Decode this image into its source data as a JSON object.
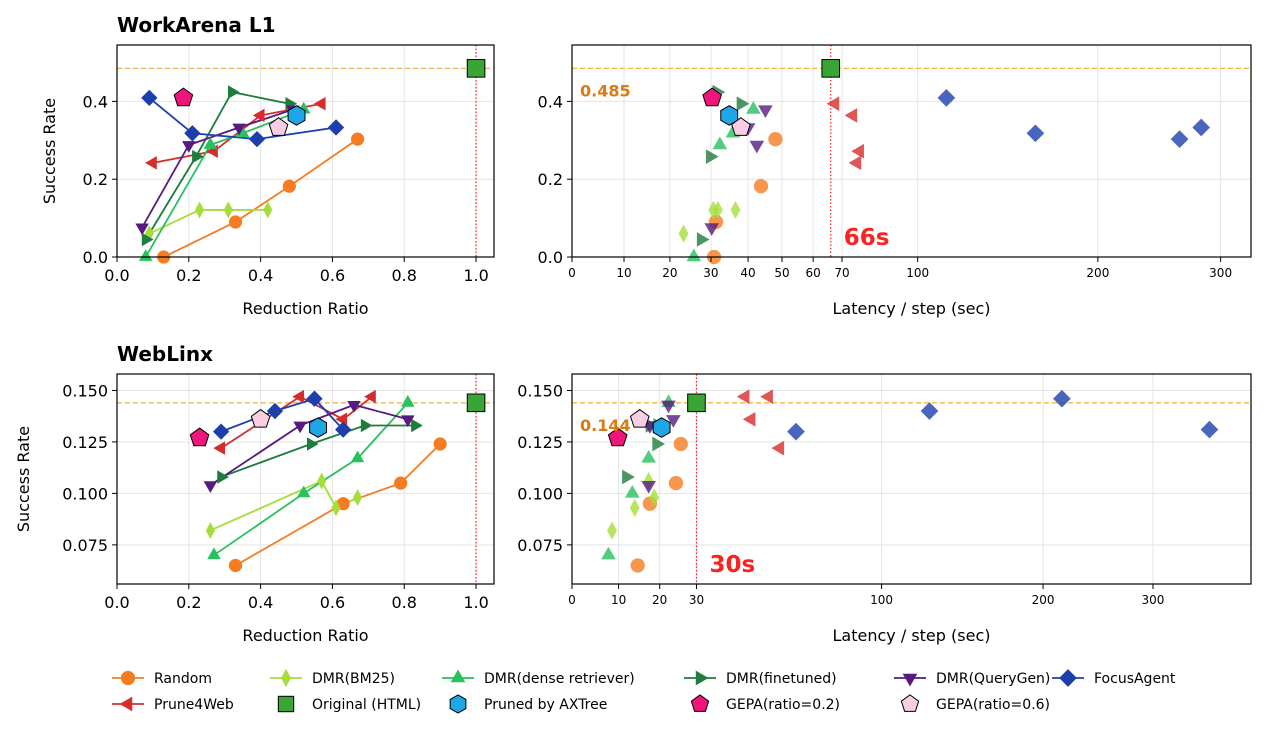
{
  "colors": {
    "Random": "#f57c20",
    "Prune4Web": "#d62c2c",
    "DMR(BM25)": "#a6dd3a",
    "Original (HTML)": "#3aa535",
    "DMR(dense retriever)": "#27c15e",
    "Pruned by AXTree": "#1fa6e6",
    "DMR(finetuned)": "#1e7c3c",
    "GEPA(ratio=0.2)": "#f0157a",
    "DMR(QueryGen)": "#561a80",
    "GEPA(ratio=0.6)": "#f9cde4",
    "FocusAgent": "#1c3fac",
    "ref_line": "#f5b54a",
    "latency_line": "#ff2020",
    "ref_text": "#d97a15"
  },
  "legend": [
    {
      "name": "Random",
      "marker": "circle",
      "line": true
    },
    {
      "name": "Prune4Web",
      "marker": "tri-left",
      "line": true
    },
    {
      "name": "DMR(BM25)",
      "marker": "thin-diamond",
      "line": true
    },
    {
      "name": "Original (HTML)",
      "marker": "square",
      "line": false
    },
    {
      "name": "DMR(dense retriever)",
      "marker": "tri-up",
      "line": true
    },
    {
      "name": "Pruned by AXTree",
      "marker": "hexagon",
      "line": false
    },
    {
      "name": "DMR(finetuned)",
      "marker": "tri-right",
      "line": true
    },
    {
      "name": "GEPA(ratio=0.2)",
      "marker": "pentagon",
      "line": false
    },
    {
      "name": "DMR(QueryGen)",
      "marker": "tri-down",
      "line": true
    },
    {
      "name": "GEPA(ratio=0.6)",
      "marker": "pentagon",
      "line": false
    },
    {
      "name": "FocusAgent",
      "marker": "diamond",
      "line": true
    }
  ],
  "chart_data": [
    {
      "type": "line",
      "title": "WorkArena L1",
      "xlabel": "Reduction Ratio",
      "ylabel": "Success Rate",
      "xlim": [
        0.0,
        1.05
      ],
      "ylim": [
        0.0,
        0.545
      ],
      "xticks": [
        0.0,
        0.2,
        0.4,
        0.6,
        0.8,
        1.0
      ],
      "xtick_labels": [
        "0.0",
        "0.2",
        "0.4",
        "0.6",
        "0.8",
        "1.0"
      ],
      "yticks": [
        0.0,
        0.2,
        0.4
      ],
      "ytick_labels": [
        "0.0",
        "0.2",
        "0.4"
      ],
      "ref_y": 0.485,
      "vline_x": 1.0,
      "series": [
        {
          "name": "Random",
          "x": [
            0.13,
            0.33,
            0.48,
            0.67
          ],
          "y": [
            0.0,
            0.09,
            0.182,
            0.303
          ]
        },
        {
          "name": "Prune4Web",
          "x": [
            0.1,
            0.27,
            0.4,
            0.57
          ],
          "y": [
            0.242,
            0.272,
            0.364,
            0.394
          ]
        },
        {
          "name": "DMR(BM25)",
          "x": [
            0.09,
            0.23,
            0.31,
            0.42
          ],
          "y": [
            0.06,
            0.121,
            0.121,
            0.121
          ]
        },
        {
          "name": "DMR(dense retriever)",
          "x": [
            0.08,
            0.26,
            0.35,
            0.52
          ],
          "y": [
            0.0,
            0.288,
            0.318,
            0.379
          ]
        },
        {
          "name": "DMR(finetuned)",
          "x": [
            0.08,
            0.22,
            0.32,
            0.48
          ],
          "y": [
            0.045,
            0.258,
            0.424,
            0.394
          ]
        },
        {
          "name": "DMR(QueryGen)",
          "x": [
            0.07,
            0.2,
            0.34,
            0.49
          ],
          "y": [
            0.076,
            0.288,
            0.333,
            0.379
          ]
        },
        {
          "name": "FocusAgent",
          "x": [
            0.09,
            0.21,
            0.39,
            0.61
          ],
          "y": [
            0.409,
            0.318,
            0.303,
            0.333
          ]
        },
        {
          "name": "Original (HTML)",
          "x": [
            1.0
          ],
          "y": [
            0.485
          ]
        },
        {
          "name": "Pruned by AXTree",
          "x": [
            0.5
          ],
          "y": [
            0.364
          ]
        },
        {
          "name": "GEPA(ratio=0.2)",
          "x": [
            0.185
          ],
          "y": [
            0.409
          ]
        },
        {
          "name": "GEPA(ratio=0.6)",
          "x": [
            0.45
          ],
          "y": [
            0.333
          ]
        }
      ]
    },
    {
      "type": "scatter",
      "xlabel": "Latency / step (sec)",
      "ylim": [
        0.0,
        0.545
      ],
      "yticks": [
        0.0,
        0.2,
        0.4
      ],
      "ytick_labels": [
        "0.0",
        "0.2",
        "0.4"
      ],
      "xticks": [
        0,
        10,
        20,
        30,
        40,
        50,
        60,
        70,
        100,
        200,
        300
      ],
      "xtick_labels": [
        "0",
        "10",
        "20",
        "30",
        "40",
        "50",
        "60",
        "70",
        "100",
        "200",
        "300"
      ],
      "ref_y": 0.485,
      "ref_label": "0.485",
      "vline_x": 66,
      "vline_label": "66s",
      "series": [
        {
          "name": "Random",
          "x": [
            30.8,
            31.3,
            43.7,
            48.0
          ],
          "y": [
            0.0,
            0.09,
            0.182,
            0.303
          ]
        },
        {
          "name": "Prune4Web",
          "x": [
            67.5,
            74.0,
            76.5,
            75.5
          ],
          "y": [
            0.394,
            0.364,
            0.272,
            0.242
          ]
        },
        {
          "name": "DMR(BM25)",
          "x": [
            23.2,
            30.6,
            31.8,
            36.5
          ],
          "y": [
            0.06,
            0.121,
            0.121,
            0.121
          ]
        },
        {
          "name": "DMR(dense retriever)",
          "x": [
            25.7,
            32.3,
            35.8,
            41.5
          ],
          "y": [
            0.0,
            0.288,
            0.318,
            0.379
          ]
        },
        {
          "name": "DMR(finetuned)",
          "x": [
            27.5,
            29.8,
            31.5,
            38.0
          ],
          "y": [
            0.045,
            0.258,
            0.424,
            0.394
          ]
        },
        {
          "name": "DMR(QueryGen)",
          "x": [
            30.2,
            40.0,
            42.5,
            45.0
          ],
          "y": [
            0.076,
            0.333,
            0.288,
            0.379
          ]
        },
        {
          "name": "FocusAgent",
          "x": [
            113.0,
            160.0,
            263.0,
            282.0
          ],
          "y": [
            0.409,
            0.318,
            0.303,
            0.333
          ]
        },
        {
          "name": "Original (HTML)",
          "x": [
            66.0
          ],
          "y": [
            0.485
          ]
        },
        {
          "name": "Pruned by AXTree",
          "x": [
            34.8
          ],
          "y": [
            0.364
          ]
        },
        {
          "name": "GEPA(ratio=0.2)",
          "x": [
            30.3
          ],
          "y": [
            0.409
          ]
        },
        {
          "name": "GEPA(ratio=0.6)",
          "x": [
            38.0
          ],
          "y": [
            0.333
          ]
        }
      ]
    },
    {
      "type": "line",
      "title": "WebLinx",
      "xlabel": "Reduction Ratio",
      "ylabel": "Success Rate",
      "xlim": [
        0.0,
        1.05
      ],
      "ylim": [
        0.056,
        0.158
      ],
      "xticks": [
        0.0,
        0.2,
        0.4,
        0.6,
        0.8,
        1.0
      ],
      "xtick_labels": [
        "0.0",
        "0.2",
        "0.4",
        "0.6",
        "0.8",
        "1.0"
      ],
      "yticks": [
        0.075,
        0.1,
        0.125,
        0.15
      ],
      "ytick_labels": [
        "0.075",
        "0.100",
        "0.125",
        "0.150"
      ],
      "ref_y": 0.144,
      "vline_x": 1.0,
      "series": [
        {
          "name": "Random",
          "x": [
            0.33,
            0.63,
            0.79,
            0.9
          ],
          "y": [
            0.065,
            0.095,
            0.105,
            0.124
          ]
        },
        {
          "name": "Prune4Web",
          "x": [
            0.29,
            0.51,
            0.63,
            0.71
          ],
          "y": [
            0.122,
            0.147,
            0.136,
            0.147
          ]
        },
        {
          "name": "DMR(BM25)",
          "x": [
            0.26,
            0.57,
            0.61,
            0.67
          ],
          "y": [
            0.082,
            0.106,
            0.093,
            0.098
          ]
        },
        {
          "name": "DMR(dense retriever)",
          "x": [
            0.27,
            0.52,
            0.67,
            0.81
          ],
          "y": [
            0.07,
            0.1,
            0.117,
            0.144
          ]
        },
        {
          "name": "DMR(finetuned)",
          "x": [
            0.29,
            0.54,
            0.69,
            0.83
          ],
          "y": [
            0.108,
            0.124,
            0.133,
            0.133
          ]
        },
        {
          "name": "DMR(QueryGen)",
          "x": [
            0.26,
            0.51,
            0.66,
            0.81
          ],
          "y": [
            0.104,
            0.133,
            0.143,
            0.136
          ]
        },
        {
          "name": "FocusAgent",
          "x": [
            0.29,
            0.44,
            0.55,
            0.63
          ],
          "y": [
            0.13,
            0.14,
            0.146,
            0.131
          ]
        },
        {
          "name": "Original (HTML)",
          "x": [
            1.0
          ],
          "y": [
            0.144
          ]
        },
        {
          "name": "Pruned by AXTree",
          "x": [
            0.56
          ],
          "y": [
            0.132
          ]
        },
        {
          "name": "GEPA(ratio=0.2)",
          "x": [
            0.23
          ],
          "y": [
            0.127
          ]
        },
        {
          "name": "GEPA(ratio=0.6)",
          "x": [
            0.4
          ],
          "y": [
            0.136
          ]
        }
      ]
    },
    {
      "type": "scatter",
      "xlabel": "Latency / step (sec)",
      "ylim": [
        0.056,
        0.158
      ],
      "yticks": [
        0.075,
        0.1,
        0.125,
        0.15
      ],
      "ytick_labels": [
        "0.075",
        "0.100",
        "0.125",
        "0.150"
      ],
      "xticks": [
        0,
        10,
        20,
        30,
        100,
        200,
        300
      ],
      "xtick_labels": [
        "0",
        "10",
        "20",
        "30",
        "100",
        "200",
        "300"
      ],
      "ref_y": 0.144,
      "ref_label": "0.144",
      "vline_x": 30,
      "vline_label": "30s",
      "series": [
        {
          "name": "Random",
          "x": [
            14.5,
            17.5,
            24.3,
            25.6
          ],
          "y": [
            0.065,
            0.095,
            0.105,
            0.124
          ]
        },
        {
          "name": "Prune4Web",
          "x": [
            45.0,
            53.0,
            47.0,
            57.0
          ],
          "y": [
            0.147,
            0.147,
            0.136,
            0.122
          ]
        },
        {
          "name": "DMR(BM25)",
          "x": [
            8.5,
            13.8,
            17.2,
            18.6
          ],
          "y": [
            0.082,
            0.093,
            0.106,
            0.098
          ]
        },
        {
          "name": "DMR(dense retriever)",
          "x": [
            7.7,
            13.2,
            17.2,
            22.3
          ],
          "y": [
            0.07,
            0.1,
            0.117,
            0.144
          ]
        },
        {
          "name": "DMR(finetuned)",
          "x": [
            11.8,
            17.5,
            19.2,
            19.5
          ],
          "y": [
            0.108,
            0.133,
            0.124,
            0.133
          ]
        },
        {
          "name": "DMR(QueryGen)",
          "x": [
            17.2,
            17.5,
            22.3,
            23.6
          ],
          "y": [
            0.104,
            0.133,
            0.143,
            0.136
          ]
        },
        {
          "name": "FocusAgent",
          "x": [
            63.0,
            125.0,
            215.0,
            365.0
          ],
          "y": [
            0.13,
            0.14,
            0.146,
            0.131
          ]
        },
        {
          "name": "Original (HTML)",
          "x": [
            30.0
          ],
          "y": [
            0.144
          ]
        },
        {
          "name": "Pruned by AXTree",
          "x": [
            20.5
          ],
          "y": [
            0.132
          ]
        },
        {
          "name": "GEPA(ratio=0.2)",
          "x": [
            9.8
          ],
          "y": [
            0.127
          ]
        },
        {
          "name": "GEPA(ratio=0.6)",
          "x": [
            15.0
          ],
          "y": [
            0.136
          ]
        }
      ]
    }
  ]
}
